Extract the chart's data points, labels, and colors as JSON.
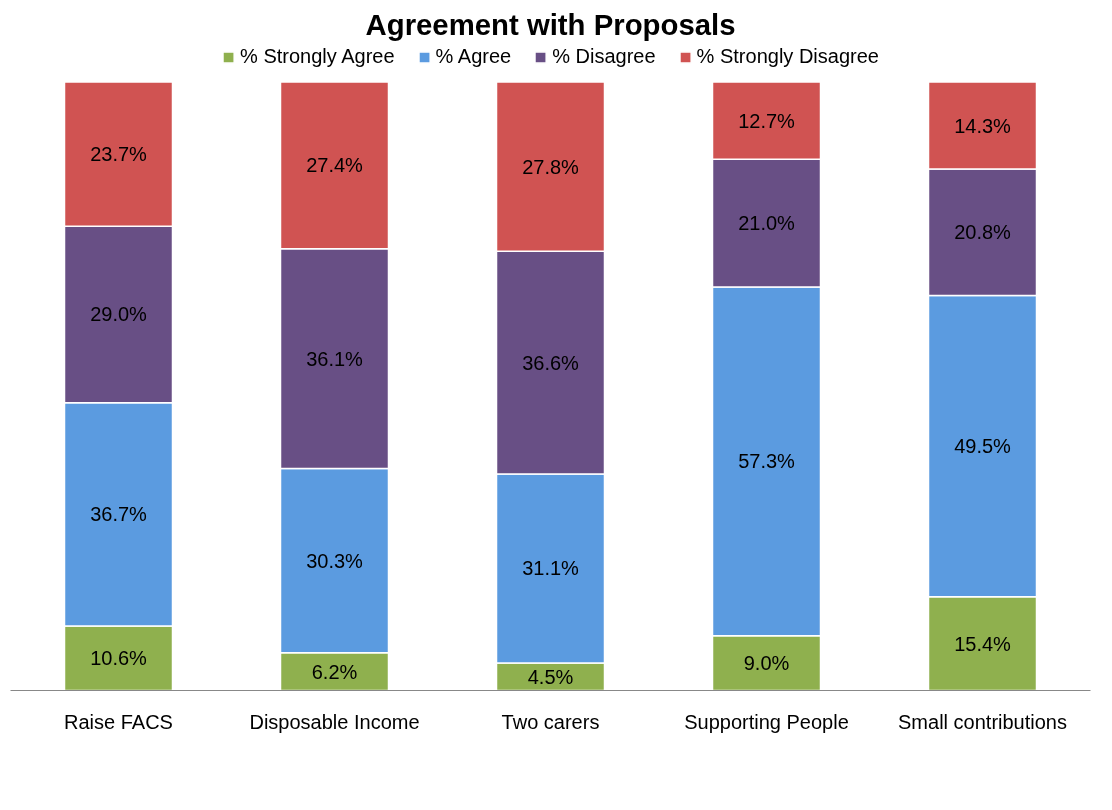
{
  "chart_data": {
    "type": "bar",
    "title": "Agreement with Proposals",
    "stacked": true,
    "legend": "top",
    "grid": false,
    "tick_labels": "x",
    "categories": [
      "Raise FACS",
      "Disposable Income",
      "Two carers",
      "Supporting People",
      "Small contributions"
    ],
    "series": [
      {
        "name": "% Strongly Agree",
        "color": "#8fb04e",
        "values": [
          10.6,
          6.2,
          4.5,
          9.0,
          15.4
        ],
        "value_labels": [
          "10.6%",
          "6.2%",
          "4.5%",
          "9.0%",
          "15.4%"
        ]
      },
      {
        "name": "% Agree",
        "color": "#5b9be0",
        "values": [
          36.7,
          30.3,
          31.1,
          57.3,
          49.5
        ],
        "value_labels": [
          "36.7%",
          "30.3%",
          "31.1%",
          "57.3%",
          "49.5%"
        ]
      },
      {
        "name": "% Disagree",
        "color": "#684f85",
        "values": [
          29.0,
          36.1,
          36.6,
          21.0,
          20.8
        ],
        "value_labels": [
          "29.0%",
          "36.1%",
          "36.6%",
          "21.0%",
          "20.8%"
        ]
      },
      {
        "name": "% Strongly Disagree",
        "color": "#d05352",
        "values": [
          23.7,
          27.4,
          27.8,
          12.7,
          14.3
        ],
        "value_labels": [
          "23.7%",
          "27.4%",
          "27.8%",
          "12.7%",
          "14.3%"
        ]
      }
    ]
  }
}
